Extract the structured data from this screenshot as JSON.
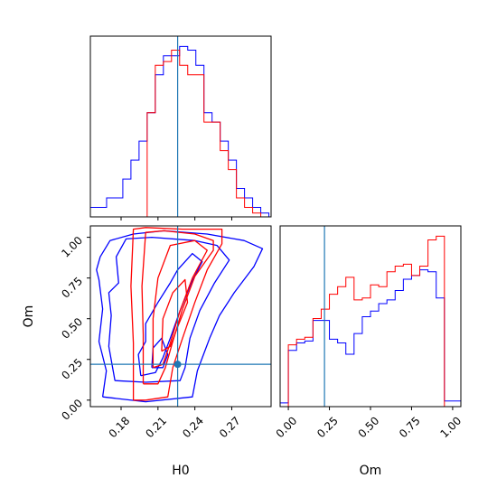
{
  "colors": {
    "blue": "#0000ff",
    "red": "#ff0000",
    "truth": "#1f77b4",
    "axis": "#000000"
  },
  "chart_data": [
    {
      "type": "histogram",
      "panel": "H0 marginal",
      "xlim": [
        0.155,
        0.302
      ],
      "truth": 0.226,
      "bin_edges": [
        0.155,
        0.1616,
        0.1682,
        0.1748,
        0.1814,
        0.188,
        0.1946,
        0.2012,
        0.2078,
        0.2144,
        0.221,
        0.2276,
        0.2342,
        0.2408,
        0.2474,
        0.254,
        0.2606,
        0.2672,
        0.2738,
        0.2804,
        0.287,
        0.2936,
        0.3002
      ],
      "series": [
        {
          "color": "blue",
          "values": [
            0.5,
            0.5,
            1,
            1,
            2,
            3,
            4,
            5.5,
            7.5,
            8.5,
            8.5,
            9,
            8.8,
            8,
            5.5,
            5,
            4,
            3,
            1.5,
            1,
            0.5,
            0.2
          ]
        },
        {
          "color": "red",
          "values": [
            0,
            0,
            0,
            0,
            0,
            0,
            0,
            5.5,
            8,
            8.2,
            8.8,
            8,
            7.5,
            7.5,
            5,
            5,
            3.5,
            2.5,
            1,
            0.5,
            0.2,
            0
          ]
        }
      ]
    },
    {
      "type": "contour",
      "panel": "H0 vs Om joint",
      "xlabel": "H0",
      "ylabel": "Om",
      "xlim": [
        0.155,
        0.302
      ],
      "ylim": [
        -0.04,
        1.07
      ],
      "xticks": [
        "0.18",
        "0.21",
        "0.24",
        "0.27"
      ],
      "yticks": [
        "0.00",
        "0.25",
        "0.50",
        "0.75",
        "1.00"
      ],
      "truth": {
        "x": 0.226,
        "y": 0.22
      },
      "series": [
        {
          "color": "blue",
          "contours": [
            [
              [
                0.165,
                0.02
              ],
              [
                0.168,
                0.18
              ],
              [
                0.162,
                0.36
              ],
              [
                0.165,
                0.56
              ],
              [
                0.162,
                0.74
              ],
              [
                0.16,
                0.8
              ],
              [
                0.163,
                0.88
              ],
              [
                0.171,
                0.98
              ],
              [
                0.19,
                1.02
              ],
              [
                0.215,
                1.04
              ],
              [
                0.25,
                1.02
              ],
              [
                0.28,
                0.98
              ],
              [
                0.295,
                0.93
              ],
              [
                0.288,
                0.82
              ],
              [
                0.272,
                0.66
              ],
              [
                0.26,
                0.52
              ],
              [
                0.252,
                0.38
              ],
              [
                0.242,
                0.18
              ],
              [
                0.238,
                0.02
              ],
              [
                0.2,
                -0.01
              ],
              [
                0.165,
                0.02
              ]
            ],
            [
              [
                0.175,
                0.12
              ],
              [
                0.17,
                0.33
              ],
              [
                0.172,
                0.52
              ],
              [
                0.17,
                0.66
              ],
              [
                0.178,
                0.72
              ],
              [
                0.176,
                0.88
              ],
              [
                0.184,
                0.99
              ],
              [
                0.205,
                1.0
              ],
              [
                0.24,
                0.98
              ],
              [
                0.258,
                0.95
              ],
              [
                0.268,
                0.86
              ],
              [
                0.256,
                0.72
              ],
              [
                0.244,
                0.55
              ],
              [
                0.236,
                0.38
              ],
              [
                0.232,
                0.2
              ],
              [
                0.228,
                0.12
              ],
              [
                0.2,
                0.11
              ],
              [
                0.175,
                0.12
              ]
            ],
            [
              [
                0.196,
                0.15
              ],
              [
                0.194,
                0.28
              ],
              [
                0.2,
                0.36
              ],
              [
                0.2,
                0.47
              ],
              [
                0.21,
                0.6
              ],
              [
                0.22,
                0.72
              ],
              [
                0.226,
                0.8
              ],
              [
                0.238,
                0.9
              ],
              [
                0.246,
                0.85
              ],
              [
                0.237,
                0.72
              ],
              [
                0.228,
                0.55
              ],
              [
                0.22,
                0.38
              ],
              [
                0.214,
                0.26
              ],
              [
                0.208,
                0.17
              ],
              [
                0.196,
                0.15
              ]
            ],
            [
              [
                0.205,
                0.2
              ],
              [
                0.206,
                0.32
              ],
              [
                0.213,
                0.38
              ],
              [
                0.218,
                0.28
              ],
              [
                0.214,
                0.2
              ],
              [
                0.205,
                0.2
              ]
            ]
          ]
        },
        {
          "color": "red",
          "contours": [
            [
              [
                0.19,
                0.0
              ],
              [
                0.19,
                0.35
              ],
              [
                0.188,
                0.7
              ],
              [
                0.19,
                1.05
              ],
              [
                0.2,
                1.06
              ],
              [
                0.23,
                1.05
              ],
              [
                0.262,
                1.05
              ],
              [
                0.262,
                0.96
              ],
              [
                0.25,
                0.8
              ],
              [
                0.24,
                0.6
              ],
              [
                0.23,
                0.38
              ],
              [
                0.222,
                0.2
              ],
              [
                0.218,
                0.02
              ],
              [
                0.2,
                0.0
              ],
              [
                0.19,
                0.0
              ]
            ],
            [
              [
                0.198,
                0.1
              ],
              [
                0.198,
                0.4
              ],
              [
                0.197,
                0.7
              ],
              [
                0.2,
                1.03
              ],
              [
                0.215,
                1.04
              ],
              [
                0.24,
                1.02
              ],
              [
                0.255,
                0.98
              ],
              [
                0.255,
                0.92
              ],
              [
                0.24,
                0.76
              ],
              [
                0.23,
                0.56
              ],
              [
                0.222,
                0.36
              ],
              [
                0.216,
                0.2
              ],
              [
                0.21,
                0.1
              ],
              [
                0.198,
                0.1
              ]
            ],
            [
              [
                0.206,
                0.2
              ],
              [
                0.206,
                0.5
              ],
              [
                0.21,
                0.75
              ],
              [
                0.22,
                0.95
              ],
              [
                0.24,
                0.98
              ],
              [
                0.25,
                0.92
              ],
              [
                0.238,
                0.75
              ],
              [
                0.228,
                0.55
              ],
              [
                0.22,
                0.35
              ],
              [
                0.214,
                0.22
              ],
              [
                0.206,
                0.2
              ]
            ],
            [
              [
                0.213,
                0.3
              ],
              [
                0.214,
                0.5
              ],
              [
                0.222,
                0.66
              ],
              [
                0.232,
                0.74
              ],
              [
                0.234,
                0.6
              ],
              [
                0.226,
                0.45
              ],
              [
                0.22,
                0.33
              ],
              [
                0.213,
                0.3
              ]
            ]
          ]
        }
      ]
    },
    {
      "type": "histogram",
      "panel": "Om marginal",
      "xlabel": "Om",
      "xlim": [
        -0.05,
        1.05
      ],
      "xticks": [
        "0.00",
        "0.25",
        "0.50",
        "0.75",
        "1.00"
      ],
      "truth": 0.22,
      "bin_edges": [
        -0.05,
        0.0,
        0.05,
        0.1,
        0.15,
        0.2,
        0.25,
        0.3,
        0.35,
        0.4,
        0.45,
        0.5,
        0.55,
        0.6,
        0.65,
        0.7,
        0.75,
        0.8,
        0.85,
        0.9,
        0.95,
        1.0,
        1.05
      ],
      "series": [
        {
          "color": "blue",
          "values": [
            0.2,
            3.0,
            3.4,
            3.5,
            4.6,
            4.6,
            3.6,
            3.4,
            2.8,
            3.9,
            4.8,
            5.1,
            5.5,
            5.7,
            6.2,
            6.8,
            7.0,
            7.3,
            7.2,
            5.8,
            0.3,
            0.3
          ]
        },
        {
          "color": "red",
          "values": [
            0,
            3.3,
            3.6,
            3.7,
            4.7,
            5.2,
            6.0,
            6.4,
            6.9,
            5.7,
            5.8,
            6.5,
            6.4,
            7.2,
            7.5,
            7.6,
            7.0,
            7.5,
            8.9,
            9.1,
            0,
            0
          ]
        }
      ]
    }
  ]
}
